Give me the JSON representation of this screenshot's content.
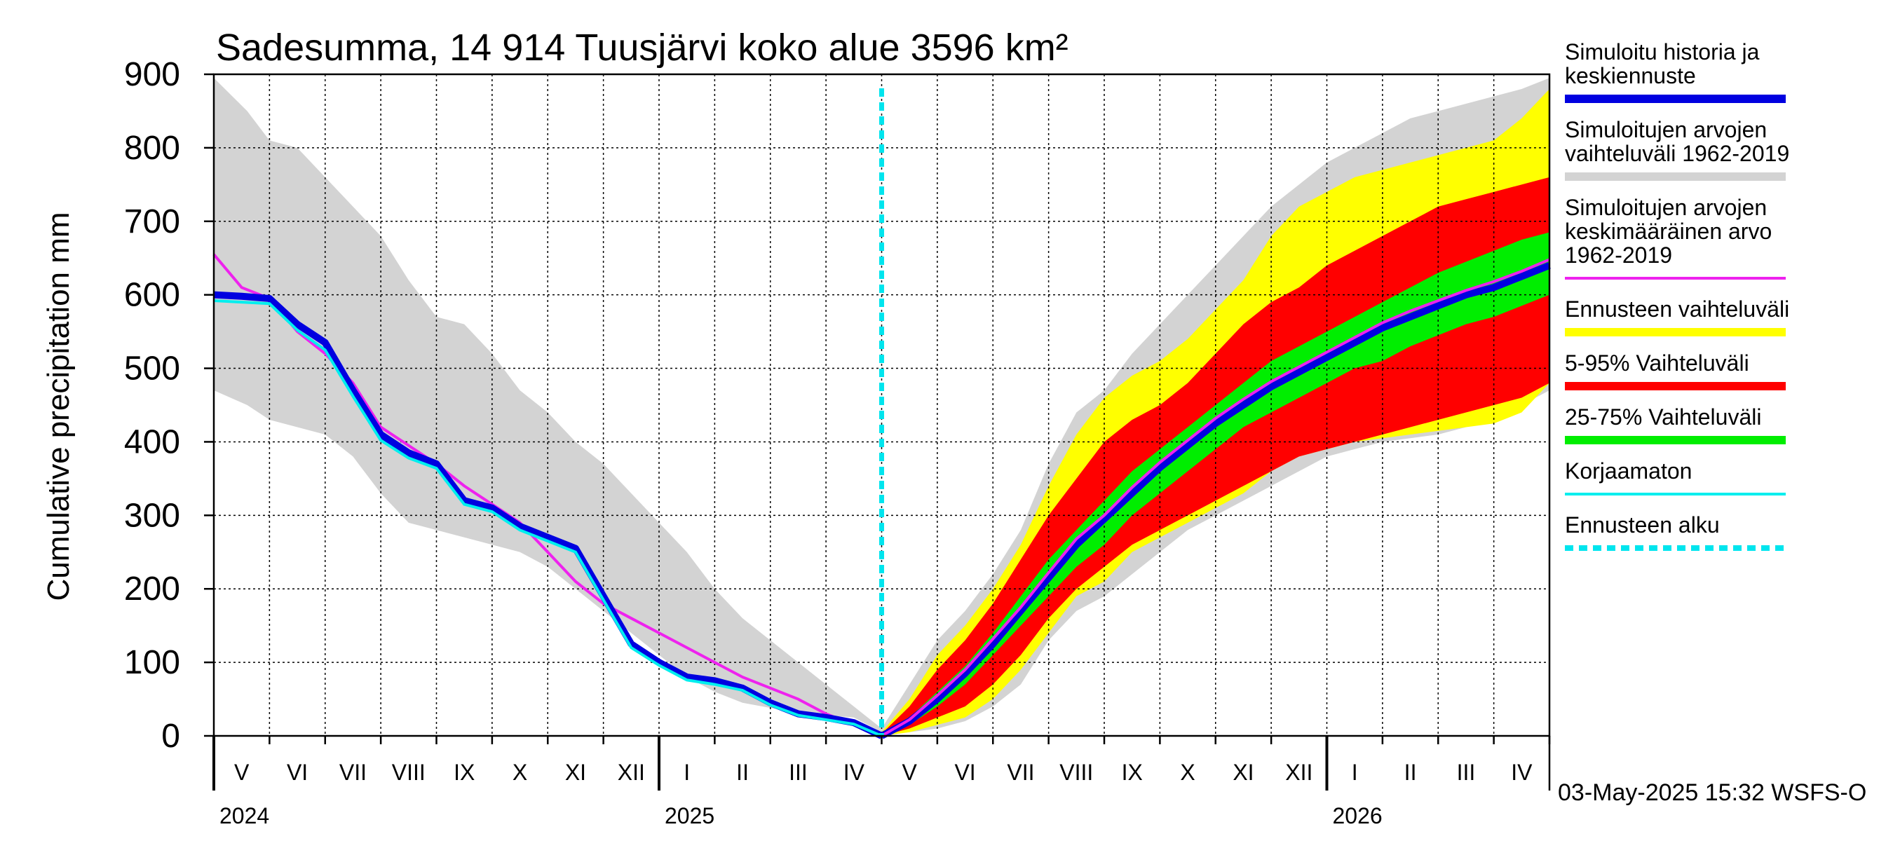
{
  "chart_data": {
    "type": "area",
    "title": "Sadesumma, 14 914 Tuusjärvi koko alue 3596 km²",
    "ylabel": "Cumulative precipitation   mm",
    "xlabel": "",
    "ylim": [
      0,
      900
    ],
    "y_ticks": [
      0,
      100,
      200,
      300,
      400,
      500,
      600,
      700,
      800,
      900
    ],
    "x_range_months": [
      0,
      24
    ],
    "month_labels": [
      "V",
      "VI",
      "VII",
      "VIII",
      "IX",
      "X",
      "XI",
      "XII",
      "I",
      "II",
      "III",
      "IV",
      "V",
      "VI",
      "VII",
      "VIII",
      "IX",
      "X",
      "XI",
      "XII",
      "I",
      "II",
      "III",
      "IV"
    ],
    "year_labels": [
      {
        "label": "2024",
        "month_index": 0
      },
      {
        "label": "2025",
        "month_index": 8
      },
      {
        "label": "2026",
        "month_index": 20
      }
    ],
    "forecast_start_month": 12,
    "footer": "03-May-2025 15:32 WSFS-O",
    "legend": [
      {
        "key": "history",
        "label": "Simuloitu historia ja keskiennuste",
        "lines": [
          "Simuloitu historia ja",
          "keskiennuste"
        ],
        "color": "#0000e0",
        "style": "thick"
      },
      {
        "key": "range_hist",
        "label": "Simuloitujen arvojen vaihteluväli 1962-2019",
        "lines": [
          "Simuloitujen arvojen",
          "vaihteluväli 1962-2019"
        ],
        "color": "#d3d3d3",
        "style": "thick"
      },
      {
        "key": "mean_hist",
        "label": "Simuloitujen arvojen keskimääräinen arvo 1962-2019",
        "lines": [
          "Simuloitujen arvojen",
          "keskimääräinen arvo",
          "   1962-2019"
        ],
        "color": "#ee22ee",
        "style": "thin"
      },
      {
        "key": "fc_range",
        "label": "Ennusteen vaihteluväli",
        "lines": [
          "Ennusteen vaihteluväli"
        ],
        "color": "#ffff00",
        "style": "thick"
      },
      {
        "key": "p5_95",
        "label": "5-95% Vaihteluväli",
        "lines": [
          "5-95% Vaihteluväli"
        ],
        "color": "#ff0000",
        "style": "thick"
      },
      {
        "key": "p25_75",
        "label": "25-75% Vaihteluväli",
        "lines": [
          "25-75% Vaihteluväli"
        ],
        "color": "#00ee00",
        "style": "thick"
      },
      {
        "key": "raw",
        "label": "Korjaamaton",
        "lines": [
          "Korjaamaton"
        ],
        "color": "#00eeee",
        "style": "thin"
      },
      {
        "key": "fc_start",
        "label": "Ennusteen alku",
        "lines": [
          "Ennusteen alku"
        ],
        "color": "#00e5ee",
        "style": "dashed"
      }
    ],
    "series": {
      "hist_range": {
        "x": [
          0,
          0.6,
          1.0,
          1.5,
          2.0,
          2.5,
          3.0,
          3.5,
          4.0,
          4.5,
          5.0,
          5.5,
          6.0,
          6.5,
          7.0,
          7.5,
          8.0,
          8.5,
          9.0,
          9.5,
          10.0,
          10.5,
          11.0,
          11.5,
          12.0
        ],
        "high": [
          895,
          850,
          810,
          800,
          760,
          720,
          680,
          620,
          570,
          560,
          520,
          470,
          440,
          400,
          370,
          330,
          290,
          250,
          200,
          160,
          130,
          100,
          70,
          40,
          10
        ],
        "low": [
          470,
          450,
          430,
          420,
          410,
          380,
          330,
          290,
          280,
          270,
          260,
          250,
          230,
          200,
          170,
          140,
          110,
          80,
          60,
          45,
          38,
          32,
          28,
          25,
          5
        ]
      },
      "mean_hist": {
        "x": [
          0,
          0.5,
          1.0,
          1.5,
          2.0,
          2.5,
          3.0,
          3.5,
          4.0,
          4.5,
          5.0,
          5.5,
          6.0,
          6.5,
          7.0,
          7.5,
          8.0,
          8.5,
          9.0,
          9.5,
          10.0,
          10.5,
          11.0,
          11.5,
          12.0
        ],
        "y": [
          655,
          610,
          595,
          550,
          520,
          480,
          420,
          395,
          370,
          340,
          315,
          290,
          250,
          210,
          180,
          160,
          140,
          120,
          100,
          80,
          65,
          50,
          30,
          15,
          0
        ]
      },
      "history": {
        "x": [
          0,
          0.5,
          1.0,
          1.5,
          2.0,
          2.5,
          3.0,
          3.5,
          4.0,
          4.5,
          5.0,
          5.5,
          6.0,
          6.5,
          7.0,
          7.5,
          8.0,
          8.5,
          9.0,
          9.5,
          10.0,
          10.5,
          11.0,
          11.5,
          12.0
        ],
        "y": [
          600,
          598,
          595,
          560,
          535,
          470,
          410,
          385,
          370,
          320,
          310,
          285,
          270,
          255,
          190,
          125,
          100,
          80,
          75,
          65,
          45,
          30,
          25,
          18,
          0
        ]
      },
      "raw": {
        "x": [
          0,
          0.5,
          1.0,
          1.5,
          2.0,
          2.5,
          3.0,
          3.5,
          4.0,
          4.5,
          5.0,
          5.5,
          6.0,
          6.5,
          7.0,
          7.5,
          8.0,
          8.5,
          9.0,
          9.5,
          10.0,
          10.5,
          11.0,
          11.5,
          12.0
        ],
        "y": [
          592,
          590,
          588,
          552,
          525,
          462,
          402,
          378,
          364,
          315,
          305,
          280,
          265,
          250,
          185,
          120,
          96,
          76,
          70,
          62,
          42,
          28,
          22,
          16,
          0
        ]
      },
      "forecast": {
        "x": [
          12.0,
          12.5,
          13.0,
          13.5,
          14.0,
          14.5,
          15.0,
          15.5,
          16.0,
          16.5,
          17.0,
          17.5,
          18.0,
          18.5,
          19.0,
          19.5,
          20.0,
          20.5,
          21.0,
          21.5,
          22.0,
          22.5,
          23.0,
          23.5,
          24.0
        ],
        "hist_high": [
          10,
          70,
          130,
          170,
          220,
          280,
          370,
          440,
          470,
          520,
          560,
          600,
          640,
          680,
          720,
          750,
          780,
          800,
          820,
          840,
          850,
          860,
          870,
          880,
          895
        ],
        "hist_low": [
          0,
          5,
          10,
          20,
          40,
          70,
          130,
          170,
          190,
          220,
          250,
          280,
          300,
          320,
          340,
          360,
          380,
          390,
          400,
          405,
          410,
          420,
          430,
          450,
          470
        ],
        "max": [
          5,
          50,
          110,
          150,
          200,
          260,
          340,
          410,
          460,
          490,
          510,
          540,
          580,
          620,
          680,
          720,
          740,
          760,
          770,
          780,
          790,
          800,
          810,
          840,
          880
        ],
        "min": [
          0,
          5,
          15,
          25,
          50,
          90,
          140,
          190,
          210,
          250,
          270,
          290,
          310,
          330,
          360,
          380,
          390,
          400,
          405,
          410,
          415,
          420,
          425,
          440,
          480
        ],
        "p95": [
          3,
          40,
          90,
          130,
          180,
          240,
          300,
          350,
          400,
          430,
          450,
          480,
          520,
          560,
          590,
          610,
          640,
          660,
          680,
          700,
          720,
          730,
          740,
          750,
          760
        ],
        "p5": [
          0,
          10,
          25,
          40,
          70,
          110,
          160,
          200,
          230,
          260,
          280,
          300,
          320,
          340,
          360,
          380,
          390,
          400,
          410,
          420,
          430,
          440,
          450,
          460,
          480
        ],
        "p75": [
          2,
          25,
          60,
          95,
          140,
          190,
          240,
          280,
          320,
          360,
          390,
          420,
          450,
          480,
          510,
          530,
          550,
          570,
          590,
          610,
          630,
          645,
          660,
          675,
          685
        ],
        "p25": [
          0,
          15,
          40,
          70,
          110,
          150,
          190,
          230,
          260,
          300,
          330,
          360,
          390,
          420,
          440,
          460,
          480,
          500,
          510,
          530,
          545,
          560,
          570,
          585,
          600
        ],
        "median": [
          0,
          20,
          50,
          85,
          125,
          170,
          215,
          260,
          295,
          330,
          365,
          395,
          425,
          450,
          475,
          495,
          515,
          535,
          555,
          570,
          585,
          600,
          610,
          625,
          640
        ],
        "mean": [
          0,
          22,
          55,
          90,
          132,
          175,
          222,
          268,
          300,
          338,
          372,
          402,
          432,
          458,
          482,
          502,
          522,
          542,
          562,
          578,
          592,
          606,
          618,
          632,
          648
        ]
      }
    }
  }
}
